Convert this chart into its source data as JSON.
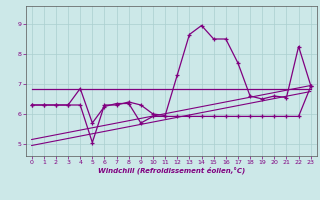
{
  "bg_color": "#cce8e8",
  "grid_color": "#aacfcf",
  "line_color": "#800080",
  "xlabel": "Windchill (Refroidissement éolien,°C)",
  "xlim": [
    -0.5,
    23.5
  ],
  "ylim": [
    4.6,
    9.6
  ],
  "yticks": [
    5,
    6,
    7,
    8,
    9
  ],
  "xticks": [
    0,
    1,
    2,
    3,
    4,
    5,
    6,
    7,
    8,
    9,
    10,
    11,
    12,
    13,
    14,
    15,
    16,
    17,
    18,
    19,
    20,
    21,
    22,
    23
  ],
  "series1_x": [
    0,
    1,
    2,
    3,
    4,
    5,
    6,
    7,
    8,
    9,
    10,
    11,
    12,
    13,
    14,
    15,
    16,
    17,
    18,
    19,
    20,
    21,
    22,
    23
  ],
  "series1_y": [
    6.3,
    6.3,
    6.3,
    6.3,
    6.3,
    5.05,
    6.3,
    6.3,
    6.4,
    6.3,
    6.0,
    5.95,
    7.3,
    8.65,
    8.95,
    8.5,
    8.5,
    7.7,
    6.6,
    6.5,
    6.6,
    6.55,
    8.25,
    6.95
  ],
  "series2_x": [
    0,
    1,
    2,
    3,
    4,
    5,
    6,
    7,
    8,
    9,
    10,
    11,
    12,
    13,
    14,
    15,
    16,
    17,
    18,
    19,
    20,
    21,
    22,
    23
  ],
  "series2_y": [
    6.3,
    6.3,
    6.3,
    6.3,
    6.85,
    5.7,
    6.25,
    6.35,
    6.35,
    5.7,
    5.92,
    5.92,
    5.92,
    5.92,
    5.92,
    5.92,
    5.92,
    5.92,
    5.92,
    5.92,
    5.92,
    5.92,
    5.92,
    6.92
  ],
  "series3_x": [
    0,
    23
  ],
  "series3_y": [
    6.85,
    6.85
  ],
  "series4_x": [
    0,
    23
  ],
  "series4_y": [
    4.95,
    6.75
  ],
  "series5_x": [
    0,
    23
  ],
  "series5_y": [
    5.15,
    6.95
  ]
}
